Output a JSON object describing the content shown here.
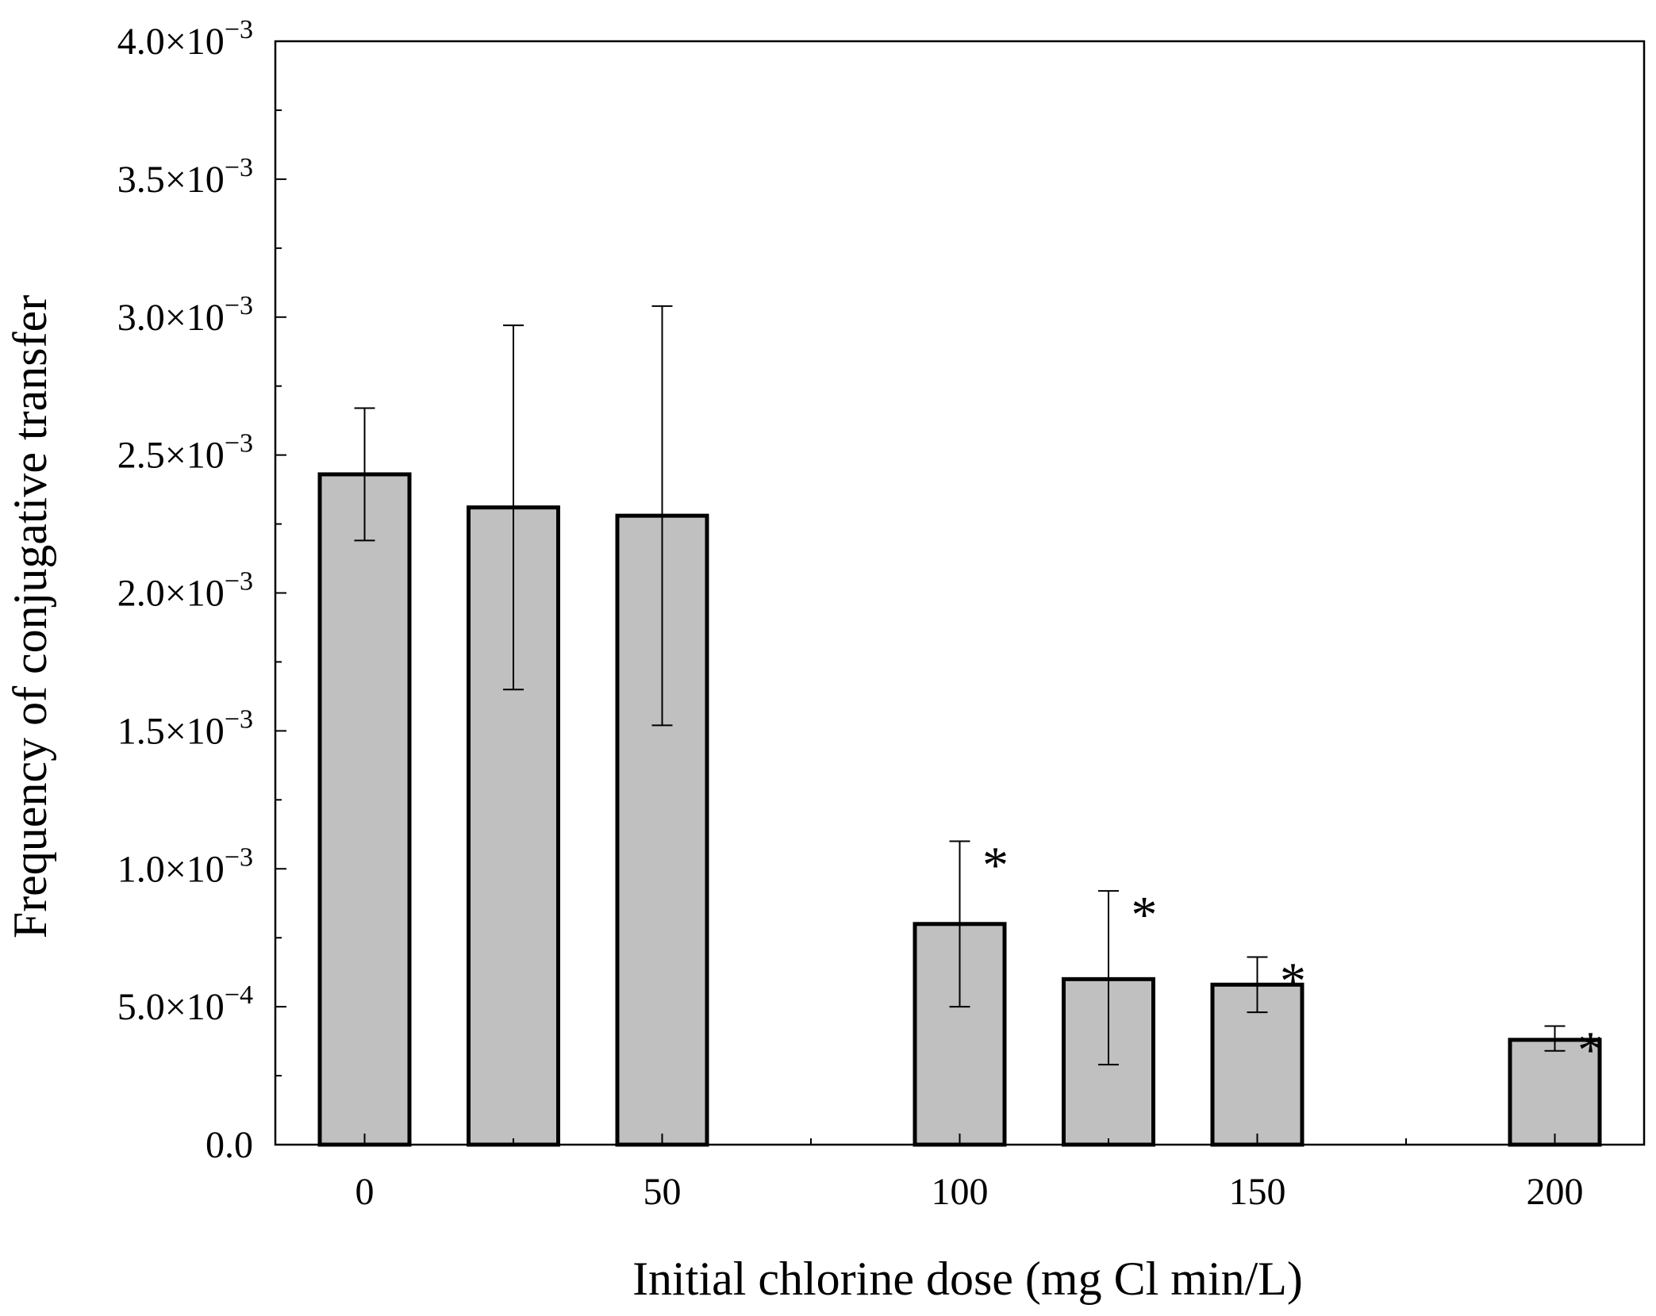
{
  "chart_data": {
    "type": "bar",
    "xlabel": "Initial chlorine dose (mg Cl min/L)",
    "ylabel": "Frequency of conjugative transfer",
    "xlim": [
      -15,
      215
    ],
    "ylim": [
      0,
      0.004
    ],
    "x_ticks": [
      "0",
      "50",
      "100",
      "150",
      "200"
    ],
    "x_tick_values": [
      0,
      50,
      100,
      150,
      200
    ],
    "x_minor_tick_values": [
      25,
      75,
      125,
      175
    ],
    "y_ticks": [
      {
        "value": 0,
        "mantissa": "0.0",
        "exponent": ""
      },
      {
        "value": 0.0005,
        "mantissa": "5.0×10",
        "exponent": "−4"
      },
      {
        "value": 0.001,
        "mantissa": "1.0×10",
        "exponent": "−3"
      },
      {
        "value": 0.0015,
        "mantissa": "1.5×10",
        "exponent": "−3"
      },
      {
        "value": 0.002,
        "mantissa": "2.0×10",
        "exponent": "−3"
      },
      {
        "value": 0.0025,
        "mantissa": "2.5×10",
        "exponent": "−3"
      },
      {
        "value": 0.003,
        "mantissa": "3.0×10",
        "exponent": "−3"
      },
      {
        "value": 0.0035,
        "mantissa": "3.5×10",
        "exponent": "−3"
      },
      {
        "value": 0.004,
        "mantissa": "4.0×10",
        "exponent": "−3"
      }
    ],
    "y_minor_step": 0.00025,
    "bars": [
      {
        "x": 0,
        "value": 0.00243,
        "err_low": 0.00219,
        "err_high": 0.00267,
        "significant": false
      },
      {
        "x": 25,
        "value": 0.00231,
        "err_low": 0.00165,
        "err_high": 0.00297,
        "significant": false
      },
      {
        "x": 50,
        "value": 0.00228,
        "err_low": 0.00152,
        "err_high": 0.00304,
        "significant": false
      },
      {
        "x": 100,
        "value": 0.0008,
        "err_low": 0.0005,
        "err_high": 0.0011,
        "significant": true
      },
      {
        "x": 125,
        "value": 0.0006,
        "err_low": 0.00029,
        "err_high": 0.00092,
        "significant": true
      },
      {
        "x": 150,
        "value": 0.00058,
        "err_low": 0.00048,
        "err_high": 0.00068,
        "significant": true
      },
      {
        "x": 200,
        "value": 0.00038,
        "err_low": 0.00034,
        "err_high": 0.00043,
        "significant": true
      }
    ],
    "significance_marker": "*",
    "colors": {
      "bar_fill": "#c0c0c0",
      "bar_stroke": "#000000",
      "axis": "#000000"
    }
  }
}
